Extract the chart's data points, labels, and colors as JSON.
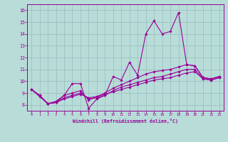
{
  "xlabel": "Windchill (Refroidissement éolien,°C)",
  "bg_color": "#b8dcd8",
  "grid_color": "#99bcbc",
  "line_color": "#990099",
  "xlim": [
    -0.5,
    23.5
  ],
  "ylim": [
    7.5,
    16.5
  ],
  "xticks": [
    0,
    1,
    2,
    3,
    4,
    5,
    6,
    7,
    8,
    9,
    10,
    11,
    12,
    13,
    14,
    15,
    16,
    17,
    18,
    19,
    20,
    21,
    22,
    23
  ],
  "yticks": [
    8,
    9,
    10,
    11,
    12,
    13,
    14,
    15,
    16
  ],
  "series": [
    [
      9.3,
      8.8,
      8.1,
      8.2,
      8.8,
      9.8,
      9.8,
      7.7,
      8.5,
      8.8,
      10.4,
      10.1,
      11.6,
      10.5,
      14.0,
      15.1,
      14.0,
      14.2,
      15.8,
      11.4,
      11.3,
      10.3,
      10.2,
      10.4
    ],
    [
      9.3,
      8.8,
      8.1,
      8.3,
      8.8,
      9.0,
      9.2,
      8.4,
      8.7,
      9.0,
      9.4,
      9.7,
      10.0,
      10.3,
      10.6,
      10.8,
      10.9,
      11.0,
      11.2,
      11.4,
      11.3,
      10.3,
      10.2,
      10.4
    ],
    [
      9.3,
      8.7,
      8.1,
      8.2,
      8.5,
      8.7,
      8.9,
      8.6,
      8.7,
      8.9,
      9.1,
      9.3,
      9.5,
      9.7,
      9.9,
      10.1,
      10.2,
      10.3,
      10.5,
      10.7,
      10.8,
      10.2,
      10.1,
      10.3
    ],
    [
      9.3,
      8.8,
      8.1,
      8.2,
      8.6,
      8.8,
      9.0,
      8.5,
      8.6,
      8.8,
      9.2,
      9.5,
      9.7,
      9.9,
      10.1,
      10.3,
      10.4,
      10.6,
      10.8,
      11.0,
      11.0,
      10.2,
      10.1,
      10.3
    ]
  ]
}
